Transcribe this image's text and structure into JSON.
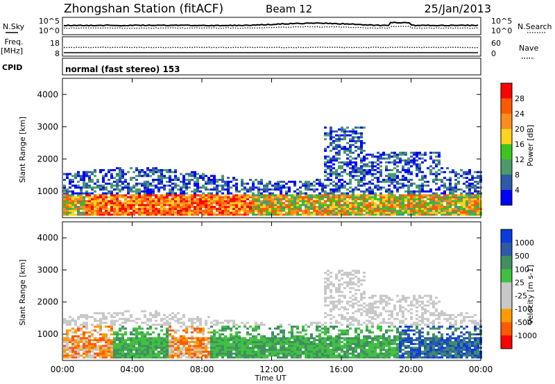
{
  "header": {
    "station": "Zhongshan Station (fitACF)",
    "beam": "Beam 12",
    "date": "25/Jan/2013"
  },
  "top_panels": {
    "nsky": {
      "left_label": "N.Sky",
      "left_ticks": [
        "10^5",
        "10^0"
      ],
      "right_label": "N.Search",
      "right_ticks": [
        "10^5",
        "10^0"
      ]
    },
    "freq": {
      "left_label_1": "Freq.",
      "left_label_2": "[MHz]",
      "left_ticks": [
        "18",
        "8"
      ],
      "right_label": "Nave",
      "right_ticks": [
        "60",
        "0"
      ]
    },
    "cpid_label": "CPID",
    "cpid_text": "normal (fast stereo) 153"
  },
  "colors": {
    "power": [
      "#0000ff",
      "#2d5aa8",
      "#4a9a6a",
      "#3ec41f",
      "#ffd21e",
      "#ff8c1e",
      "#ff5a00",
      "#ff0000"
    ],
    "velocity": [
      "#ff0000",
      "#ff5a00",
      "#ff9a00",
      "#c8c8c8",
      "#c8c8c8",
      "#40c040",
      "#3f8f5f",
      "#2d5aa8",
      "#0a3cdc"
    ]
  },
  "chart_data": [
    {
      "type": "heatmap",
      "panel": "power",
      "xlabel": "",
      "ylabel": "Slant Range [km]",
      "yticks": [
        "4000",
        "3000",
        "2000",
        "1000"
      ],
      "ylim": [
        180,
        4500
      ],
      "colorbar_label": "Power [dB]",
      "colorbar_ticks": [
        "28",
        "24",
        "20",
        "16",
        "12",
        "8",
        "4"
      ],
      "grid": false
    },
    {
      "type": "heatmap",
      "panel": "velocity",
      "xlabel": "Time UT",
      "ylabel": "Slant Range [km]",
      "yticks": [
        "4000",
        "3000",
        "2000",
        "1000"
      ],
      "ylim": [
        180,
        4500
      ],
      "xticks": [
        "00:00",
        "04:00",
        "08:00",
        "12:00",
        "16:00",
        "20:00",
        "00:00"
      ],
      "colorbar_label": "Velocity [m s-1]",
      "colorbar_ticks": [
        "1000",
        "500",
        "100",
        "25",
        "-25",
        "-100",
        "-500",
        "-1000"
      ],
      "grid": false
    }
  ]
}
